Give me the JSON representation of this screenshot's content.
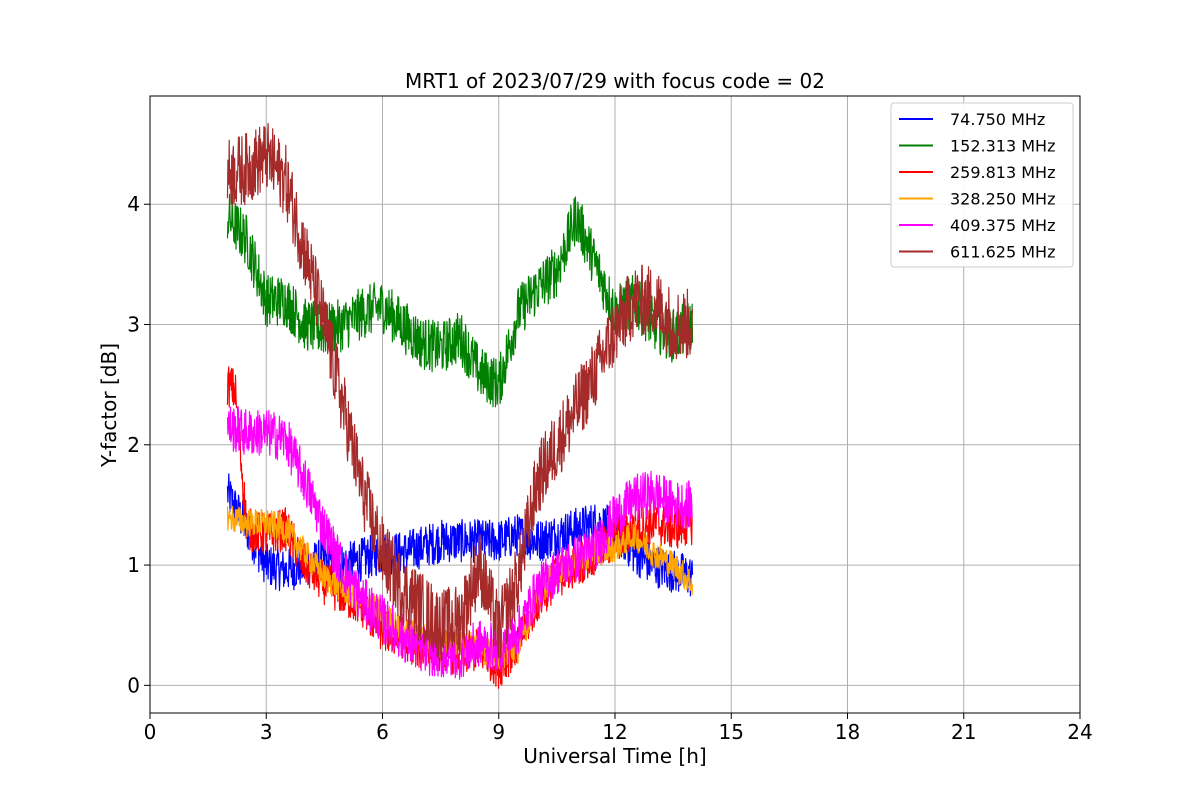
{
  "chart_data": {
    "type": "line",
    "title": "MRT1 of 2023/07/29 with focus code = 02",
    "xlabel": "Universal Time [h]",
    "ylabel": "Y-factor [dB]",
    "xlim": [
      0,
      24
    ],
    "ylim": [
      -0.23,
      4.9
    ],
    "xticks": [
      0,
      3,
      6,
      9,
      12,
      15,
      18,
      21,
      24
    ],
    "yticks": [
      0,
      1,
      2,
      3,
      4
    ],
    "grid": true,
    "legend_position": "top-right",
    "series": [
      {
        "name": "  74.750 MHz",
        "color": "#0000ff",
        "noise": 0.18,
        "x": [
          2.0,
          2.5,
          3.0,
          3.5,
          4.0,
          4.5,
          5.0,
          5.5,
          6.0,
          6.5,
          7.0,
          7.5,
          8.0,
          8.5,
          9.0,
          9.5,
          10.0,
          10.5,
          11.0,
          11.5,
          12.0,
          12.5,
          13.0,
          13.5,
          14.0
        ],
        "y": [
          1.6,
          1.3,
          1.0,
          0.95,
          1.0,
          1.05,
          1.0,
          1.05,
          1.1,
          1.1,
          1.15,
          1.2,
          1.2,
          1.2,
          1.2,
          1.25,
          1.2,
          1.25,
          1.3,
          1.35,
          1.3,
          1.1,
          1.0,
          0.95,
          0.9
        ]
      },
      {
        "name": "152.313 MHz",
        "color": "#008000",
        "noise": 0.22,
        "x": [
          2.0,
          2.5,
          3.0,
          3.5,
          4.0,
          4.5,
          5.0,
          5.5,
          6.0,
          6.5,
          7.0,
          7.5,
          8.0,
          8.5,
          9.0,
          9.5,
          10.0,
          10.5,
          11.0,
          11.5,
          12.0,
          12.5,
          13.0,
          13.5,
          14.0
        ],
        "y": [
          3.9,
          3.7,
          3.2,
          3.2,
          3.0,
          2.95,
          3.0,
          3.1,
          3.15,
          3.0,
          2.85,
          2.8,
          2.9,
          2.6,
          2.5,
          3.1,
          3.3,
          3.45,
          3.9,
          3.5,
          3.1,
          3.2,
          3.0,
          2.9,
          3.0
        ]
      },
      {
        "name": "259.813 MHz",
        "color": "#ff0000",
        "noise": 0.18,
        "x": [
          2.0,
          2.2,
          2.5,
          3.0,
          3.5,
          4.0,
          4.5,
          5.0,
          5.5,
          6.0,
          6.5,
          7.0,
          7.5,
          8.0,
          8.5,
          9.0,
          9.5,
          10.0,
          10.5,
          11.0,
          11.5,
          12.0,
          12.5,
          13.0,
          13.5,
          14.0
        ],
        "y": [
          2.5,
          2.45,
          1.3,
          1.25,
          1.3,
          1.0,
          0.85,
          0.75,
          0.65,
          0.45,
          0.4,
          0.3,
          0.3,
          0.25,
          0.3,
          0.15,
          0.35,
          0.7,
          0.9,
          1.0,
          1.1,
          1.2,
          1.3,
          1.35,
          1.3,
          1.35
        ]
      },
      {
        "name": "328.250 MHz",
        "color": "#ffa500",
        "noise": 0.12,
        "x": [
          2.0,
          2.5,
          3.0,
          3.5,
          4.0,
          4.5,
          5.0,
          5.5,
          6.0,
          6.5,
          7.0,
          7.5,
          8.0,
          8.5,
          9.0,
          9.5,
          10.0,
          10.5,
          11.0,
          11.5,
          12.0,
          12.5,
          13.0,
          13.5,
          14.0
        ],
        "y": [
          1.4,
          1.35,
          1.35,
          1.3,
          1.1,
          0.9,
          0.8,
          0.7,
          0.6,
          0.45,
          0.4,
          0.35,
          0.35,
          0.3,
          0.25,
          0.3,
          0.75,
          0.95,
          1.05,
          1.1,
          1.15,
          1.25,
          1.1,
          1.0,
          0.85
        ]
      },
      {
        "name": "409.375 MHz",
        "color": "#ff00ff",
        "noise": 0.2,
        "x": [
          2.0,
          2.5,
          3.0,
          3.5,
          4.0,
          4.5,
          5.0,
          5.5,
          6.0,
          6.5,
          7.0,
          7.5,
          8.0,
          8.5,
          9.0,
          9.5,
          10.0,
          10.5,
          11.0,
          11.5,
          12.0,
          12.5,
          13.0,
          13.5,
          14.0
        ],
        "y": [
          2.15,
          2.1,
          2.1,
          2.05,
          1.7,
          1.3,
          0.95,
          0.7,
          0.55,
          0.4,
          0.3,
          0.25,
          0.25,
          0.35,
          0.3,
          0.45,
          0.8,
          0.95,
          1.05,
          1.15,
          1.4,
          1.55,
          1.6,
          1.5,
          1.5
        ]
      },
      {
        "name": "611.625 MHz",
        "color": "#a52a2a",
        "noise": 0.3,
        "x": [
          2.0,
          2.5,
          3.0,
          3.5,
          4.0,
          4.5,
          5.0,
          5.5,
          6.0,
          6.5,
          7.0,
          7.5,
          8.0,
          8.5,
          9.0,
          9.5,
          10.0,
          10.5,
          11.0,
          11.5,
          12.0,
          12.5,
          13.0,
          13.5,
          14.0
        ],
        "y": [
          4.25,
          4.3,
          4.4,
          4.2,
          3.6,
          3.0,
          2.3,
          1.6,
          1.1,
          0.8,
          0.65,
          0.5,
          0.55,
          1.0,
          0.45,
          0.9,
          1.7,
          2.0,
          2.3,
          2.6,
          2.95,
          3.2,
          3.2,
          3.0,
          3.0
        ]
      }
    ]
  }
}
